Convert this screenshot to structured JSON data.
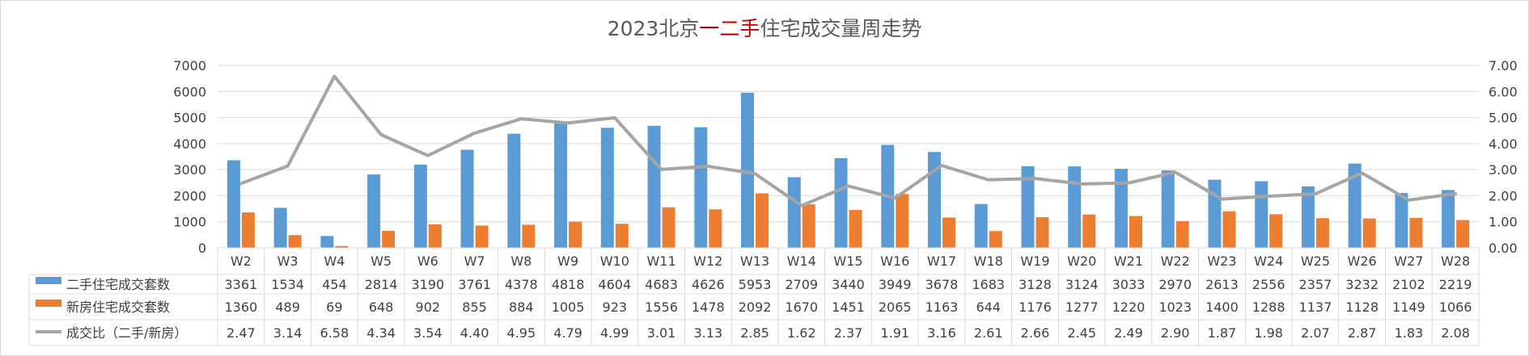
{
  "chart_data": {
    "type": "bar",
    "title": {
      "parts": [
        {
          "text": "2023北京",
          "color": "#595959"
        },
        {
          "text": "一二手",
          "color": "#c00000"
        },
        {
          "text": "住宅成交量周走势",
          "color": "#595959"
        }
      ]
    },
    "categories": [
      "W2",
      "W3",
      "W4",
      "W5",
      "W6",
      "W7",
      "W8",
      "W9",
      "W10",
      "W11",
      "W12",
      "W13",
      "W14",
      "W15",
      "W16",
      "W17",
      "W18",
      "W19",
      "W20",
      "W21",
      "W22",
      "W23",
      "W24",
      "W25",
      "W26",
      "W27",
      "W28"
    ],
    "y_left": {
      "ylim": [
        0,
        7000
      ],
      "ticks": [
        "0",
        "1000",
        "2000",
        "3000",
        "4000",
        "5000",
        "6000",
        "7000"
      ]
    },
    "y_right": {
      "ylim": [
        0,
        7
      ],
      "ticks": [
        "0.00",
        "1.00",
        "2.00",
        "3.00",
        "4.00",
        "5.00",
        "6.00",
        "7.00"
      ]
    },
    "grid": true,
    "legend_placement": "data-table",
    "series": [
      {
        "name": "二手住宅成交套数",
        "kind": "bar",
        "axis": "left",
        "color": "#5b9bd5",
        "values": [
          3361,
          1534,
          454,
          2814,
          3190,
          3761,
          4378,
          4818,
          4604,
          4683,
          4626,
          5953,
          2709,
          3440,
          3949,
          3678,
          1683,
          3128,
          3124,
          3033,
          2970,
          2613,
          2556,
          2357,
          3232,
          2102,
          2219
        ]
      },
      {
        "name": "新房住宅成交套数",
        "kind": "bar",
        "axis": "left",
        "color": "#ed7d31",
        "values": [
          1360,
          489,
          69,
          648,
          902,
          855,
          884,
          1005,
          923,
          1556,
          1478,
          2092,
          1670,
          1451,
          2065,
          1163,
          644,
          1176,
          1277,
          1220,
          1023,
          1400,
          1288,
          1137,
          1128,
          1149,
          1066
        ]
      },
      {
        "name": "成交比（二手/新房）",
        "kind": "line",
        "axis": "right",
        "color": "#a5a5a5",
        "values": [
          2.47,
          3.14,
          6.58,
          4.34,
          3.54,
          4.4,
          4.95,
          4.79,
          4.99,
          3.01,
          3.13,
          2.85,
          1.62,
          2.37,
          1.91,
          3.16,
          2.61,
          2.66,
          2.45,
          2.49,
          2.9,
          1.87,
          1.98,
          2.07,
          2.87,
          1.83,
          2.08
        ],
        "labels": [
          "2.47",
          "3.14",
          "6.58",
          "4.34",
          "3.54",
          "4.40",
          "4.95",
          "4.79",
          "4.99",
          "3.01",
          "3.13",
          "2.85",
          "1.62",
          "2.37",
          "1.91",
          "3.16",
          "2.61",
          "2.66",
          "2.45",
          "2.49",
          "2.90",
          "1.87",
          "1.98",
          "2.07",
          "2.87",
          "1.83",
          "2.08"
        ]
      }
    ]
  }
}
